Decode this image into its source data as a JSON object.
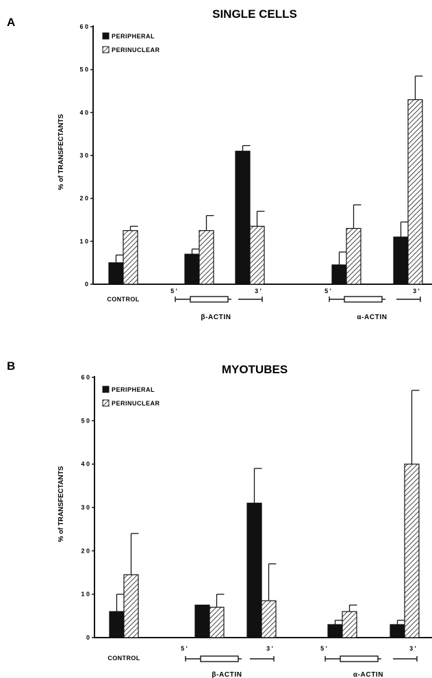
{
  "chart_data": [
    {
      "panel": "A",
      "type": "bar",
      "title": "SINGLE CELLS",
      "ylabel": "% of TRANSFECTANTS",
      "ylim": [
        0,
        60
      ],
      "yticks": [
        "0",
        "1 0",
        "2 0",
        "3 0",
        "4 0",
        "5 0",
        "6 0"
      ],
      "legend_position": "top-left",
      "categories": [
        "CONTROL",
        "β-ACTIN 5'",
        "β-ACTIN 3'",
        "α-ACTIN 5'",
        "α-ACTIN 3'"
      ],
      "series": [
        {
          "name": "PERIPHERAL",
          "fill": "solid",
          "values": [
            5,
            7,
            31,
            4.5,
            11
          ],
          "errors": [
            1.8,
            1.2,
            1.3,
            3.0,
            3.5
          ]
        },
        {
          "name": "PERINUCLEAR",
          "fill": "hatched",
          "values": [
            12.5,
            12.5,
            13.5,
            13,
            43
          ],
          "errors": [
            1.0,
            3.5,
            3.5,
            5.5,
            5.5
          ]
        }
      ],
      "x_labels": {
        "control": "CONTROL",
        "beta_gene": "β-ACTIN",
        "alpha_gene": "α-ACTIN",
        "five_prime": "5 '",
        "three_prime": "3 '"
      }
    },
    {
      "panel": "B",
      "type": "bar",
      "title": "MYOTUBES",
      "ylabel": "% of TRANSFECTANTS",
      "ylim": [
        0,
        60
      ],
      "yticks": [
        "0",
        "1 0",
        "2 0",
        "3 0",
        "4 0",
        "5 0",
        "6 0"
      ],
      "legend_position": "top-left",
      "categories": [
        "CONTROL",
        "β-ACTIN 5'",
        "β-ACTIN 3'",
        "α-ACTIN 5'",
        "α-ACTIN 3'"
      ],
      "series": [
        {
          "name": "PERIPHERAL",
          "fill": "solid",
          "values": [
            6,
            7.5,
            31,
            3,
            3
          ],
          "errors": [
            4,
            0,
            8,
            1,
            1
          ]
        },
        {
          "name": "PERINUCLEAR",
          "fill": "hatched",
          "values": [
            14.5,
            7,
            8.5,
            6,
            40
          ],
          "errors": [
            9.5,
            3,
            8.5,
            1.5,
            17
          ]
        }
      ],
      "x_labels": {
        "control": "CONTROL",
        "beta_gene": "β-ACTIN",
        "alpha_gene": "α-ACTIN",
        "five_prime": "5 '",
        "three_prime": "3 '"
      }
    }
  ]
}
